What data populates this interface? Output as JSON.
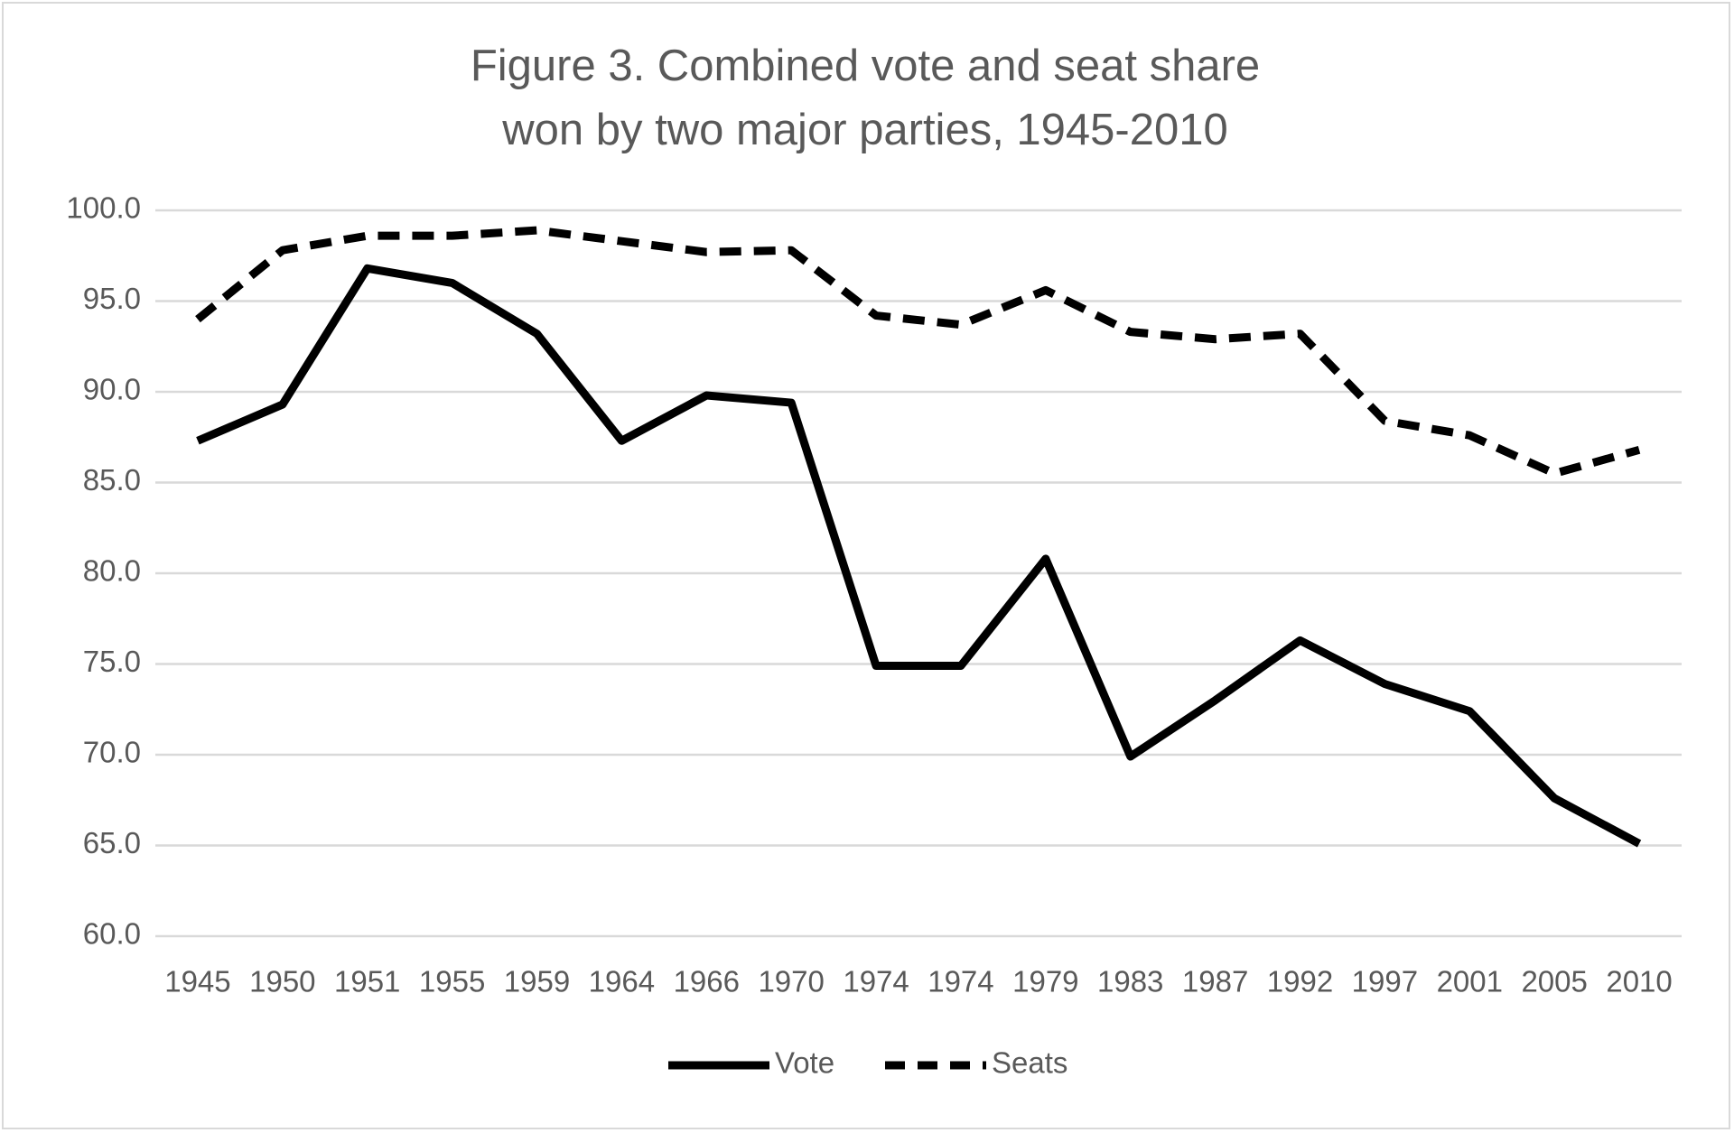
{
  "chart_data": {
    "type": "line",
    "title": [
      "Figure 3. Combined vote and seat share",
      "won by two major parties, 1945-2010"
    ],
    "categories": [
      "1945",
      "1950",
      "1951",
      "1955",
      "1959",
      "1964",
      "1966",
      "1970",
      "1974",
      "1974",
      "1979",
      "1983",
      "1987",
      "1992",
      "1997",
      "2001",
      "2005",
      "2010"
    ],
    "series": [
      {
        "name": "Vote",
        "color": "#000000",
        "style": "solid",
        "values": [
          87.3,
          89.3,
          96.8,
          96.0,
          93.2,
          87.3,
          89.8,
          89.4,
          74.9,
          74.9,
          80.8,
          69.9,
          73.0,
          76.3,
          73.9,
          72.4,
          67.6,
          65.1
        ]
      },
      {
        "name": "Seats",
        "color": "#000000",
        "style": "dashed",
        "values": [
          94.0,
          97.8,
          98.6,
          98.6,
          98.9,
          98.3,
          97.7,
          97.8,
          94.2,
          93.7,
          95.6,
          93.3,
          92.9,
          93.2,
          88.4,
          87.6,
          85.5,
          86.8
        ]
      }
    ],
    "ylim": [
      60,
      100
    ],
    "yticks": [
      {
        "value": 60,
        "label": "60.0"
      },
      {
        "value": 65,
        "label": "65.0"
      },
      {
        "value": 70,
        "label": "70.0"
      },
      {
        "value": 75,
        "label": "75.0"
      },
      {
        "value": 80,
        "label": "80.0"
      },
      {
        "value": 85,
        "label": "85.0"
      },
      {
        "value": 90,
        "label": "90.0"
      },
      {
        "value": 95,
        "label": "95.0"
      },
      {
        "value": 100,
        "label": "100.0"
      }
    ],
    "grid": true,
    "legend": "bottom"
  }
}
